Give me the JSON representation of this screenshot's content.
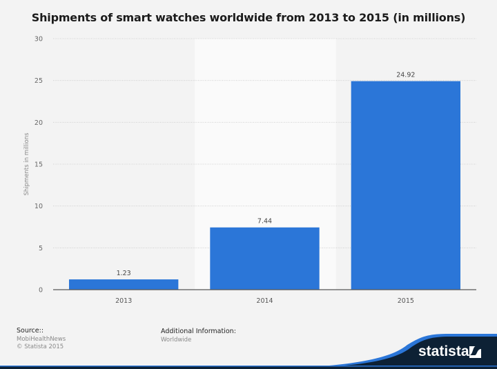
{
  "chart_data": {
    "type": "bar",
    "title": "Shipments of smart watches worldwide from 2013 to 2015 (in millions)",
    "categories": [
      "2013",
      "2014",
      "2015"
    ],
    "values": [
      1.23,
      7.44,
      24.92
    ],
    "value_labels": [
      "1.23",
      "7.44",
      "24.92"
    ],
    "xlabel": "",
    "ylabel": "Shipments in millions",
    "ylim": [
      0,
      30
    ],
    "yticks": [
      "0",
      "5",
      "10",
      "15",
      "20",
      "25",
      "30"
    ],
    "grid": true,
    "highlighted_category": "2014",
    "bar_color": "#2b76d8"
  },
  "footer": {
    "source_label": "Source::",
    "source_name": "MobiHealthNews",
    "copyright": "© Statista 2015",
    "additional_label": "Additional Information:",
    "additional_value": "Worldwide"
  },
  "brand": {
    "name": "statista",
    "dark_color": "#0d2135",
    "accent_color": "#2b76d8"
  }
}
